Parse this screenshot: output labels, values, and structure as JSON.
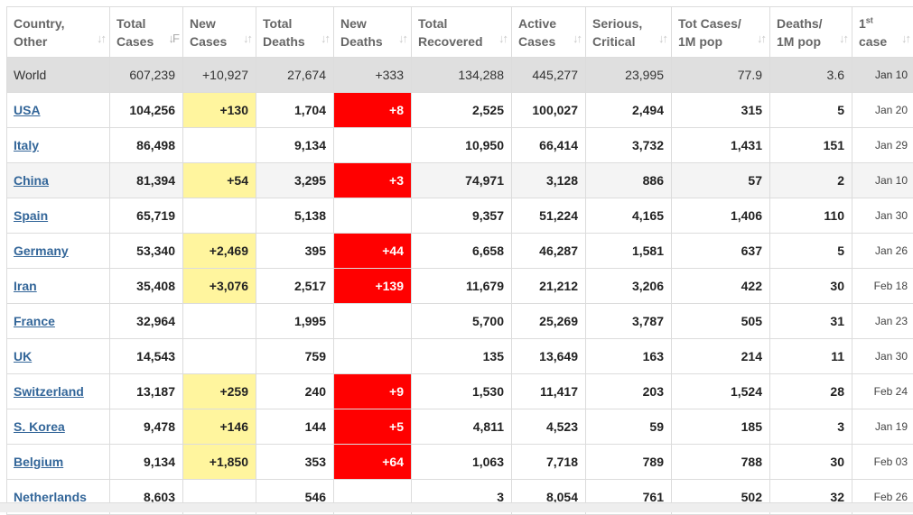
{
  "columns": [
    {
      "line1": "Country,",
      "line2": "Other"
    },
    {
      "line1": "Total",
      "line2": "Cases"
    },
    {
      "line1": "New",
      "line2": "Cases"
    },
    {
      "line1": "Total",
      "line2": "Deaths"
    },
    {
      "line1": "New",
      "line2": "Deaths"
    },
    {
      "line1": "Total",
      "line2": "Recovered"
    },
    {
      "line1": "Active",
      "line2": "Cases"
    },
    {
      "line1": "Serious,",
      "line2": "Critical"
    },
    {
      "line1": "Tot Cases/",
      "line2": "1M pop"
    },
    {
      "line1": "Deaths/",
      "line2": "1M pop"
    },
    {
      "line1": "1",
      "sup": "st",
      "line2": "case"
    }
  ],
  "sort_icons": [
    "arrows-updown-icon",
    "sort-desc-icon"
  ],
  "colors": {
    "new_cases_highlight": "#fff59e",
    "new_deaths_highlight": "#ff0000",
    "link": "#336699",
    "world_row": "#dfdfdf"
  },
  "rows": [
    {
      "country": "World",
      "total_cases": "607,239",
      "new_cases": "+10,927",
      "total_deaths": "27,674",
      "new_deaths": "+333",
      "total_recovered": "134,288",
      "active": "445,277",
      "serious": "23,995",
      "cases_per_1m": "77.9",
      "deaths_per_1m": "3.6",
      "first_case": "Jan 10"
    },
    {
      "country": "USA",
      "total_cases": "104,256",
      "new_cases": "+130",
      "total_deaths": "1,704",
      "new_deaths": "+8",
      "total_recovered": "2,525",
      "active": "100,027",
      "serious": "2,494",
      "cases_per_1m": "315",
      "deaths_per_1m": "5",
      "first_case": "Jan 20"
    },
    {
      "country": "Italy",
      "total_cases": "86,498",
      "new_cases": "",
      "total_deaths": "9,134",
      "new_deaths": "",
      "total_recovered": "10,950",
      "active": "66,414",
      "serious": "3,732",
      "cases_per_1m": "1,431",
      "deaths_per_1m": "151",
      "first_case": "Jan 29"
    },
    {
      "country": "China",
      "total_cases": "81,394",
      "new_cases": "+54",
      "total_deaths": "3,295",
      "new_deaths": "+3",
      "total_recovered": "74,971",
      "active": "3,128",
      "serious": "886",
      "cases_per_1m": "57",
      "deaths_per_1m": "2",
      "first_case": "Jan 10"
    },
    {
      "country": "Spain",
      "total_cases": "65,719",
      "new_cases": "",
      "total_deaths": "5,138",
      "new_deaths": "",
      "total_recovered": "9,357",
      "active": "51,224",
      "serious": "4,165",
      "cases_per_1m": "1,406",
      "deaths_per_1m": "110",
      "first_case": "Jan 30"
    },
    {
      "country": "Germany",
      "total_cases": "53,340",
      "new_cases": "+2,469",
      "total_deaths": "395",
      "new_deaths": "+44",
      "total_recovered": "6,658",
      "active": "46,287",
      "serious": "1,581",
      "cases_per_1m": "637",
      "deaths_per_1m": "5",
      "first_case": "Jan 26"
    },
    {
      "country": "Iran",
      "total_cases": "35,408",
      "new_cases": "+3,076",
      "total_deaths": "2,517",
      "new_deaths": "+139",
      "total_recovered": "11,679",
      "active": "21,212",
      "serious": "3,206",
      "cases_per_1m": "422",
      "deaths_per_1m": "30",
      "first_case": "Feb 18"
    },
    {
      "country": "France",
      "total_cases": "32,964",
      "new_cases": "",
      "total_deaths": "1,995",
      "new_deaths": "",
      "total_recovered": "5,700",
      "active": "25,269",
      "serious": "3,787",
      "cases_per_1m": "505",
      "deaths_per_1m": "31",
      "first_case": "Jan 23"
    },
    {
      "country": "UK",
      "total_cases": "14,543",
      "new_cases": "",
      "total_deaths": "759",
      "new_deaths": "",
      "total_recovered": "135",
      "active": "13,649",
      "serious": "163",
      "cases_per_1m": "214",
      "deaths_per_1m": "11",
      "first_case": "Jan 30"
    },
    {
      "country": "Switzerland",
      "total_cases": "13,187",
      "new_cases": "+259",
      "total_deaths": "240",
      "new_deaths": "+9",
      "total_recovered": "1,530",
      "active": "11,417",
      "serious": "203",
      "cases_per_1m": "1,524",
      "deaths_per_1m": "28",
      "first_case": "Feb 24"
    },
    {
      "country": "S. Korea",
      "total_cases": "9,478",
      "new_cases": "+146",
      "total_deaths": "144",
      "new_deaths": "+5",
      "total_recovered": "4,811",
      "active": "4,523",
      "serious": "59",
      "cases_per_1m": "185",
      "deaths_per_1m": "3",
      "first_case": "Jan 19"
    },
    {
      "country": "Belgium",
      "total_cases": "9,134",
      "new_cases": "+1,850",
      "total_deaths": "353",
      "new_deaths": "+64",
      "total_recovered": "1,063",
      "active": "7,718",
      "serious": "789",
      "cases_per_1m": "788",
      "deaths_per_1m": "30",
      "first_case": "Feb 03"
    },
    {
      "country": "Netherlands",
      "total_cases": "8,603",
      "new_cases": "",
      "total_deaths": "546",
      "new_deaths": "",
      "total_recovered": "3",
      "active": "8,054",
      "serious": "761",
      "cases_per_1m": "502",
      "deaths_per_1m": "32",
      "first_case": "Feb 26"
    }
  ]
}
